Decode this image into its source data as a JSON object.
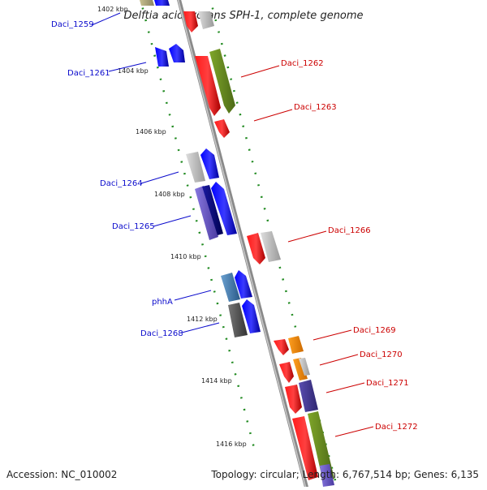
{
  "title": "Delftia acidovorans SPH-1, complete genome",
  "accession_text": "Accession: NC_010002",
  "topology_text": "Topology: circular; Length: 6,767,514 bp; Genes: 6,135",
  "kbp_labels": {
    "k1402": "1402 kbp",
    "k1404": "1404 kbp",
    "k1406": "1406 kbp",
    "k1408": "1408 kbp",
    "k1410": "1410 kbp",
    "k1412": "1412 kbp",
    "k1414": "1414 kbp",
    "k1416": "1416 kbp"
  },
  "genes_left": {
    "daci_1259": "Daci_1259",
    "daci_1261": "Daci_1261",
    "daci_1264": "Daci_1264",
    "daci_1265": "Daci_1265",
    "phhA": "phhA",
    "daci_1268": "Daci_1268"
  },
  "genes_right": {
    "daci_1262": "Daci_1262",
    "daci_1263": "Daci_1263",
    "daci_1266": "Daci_1266",
    "daci_1269": "Daci_1269",
    "daci_1270": "Daci_1270",
    "daci_1271": "Daci_1271",
    "daci_1272": "Daci_1272"
  },
  "colors": {
    "forward_blue": "#0000ff",
    "reverse_red": "#ff0000",
    "olive": "#6b8e23",
    "grey": "#bbbbbb",
    "navy": "#000080",
    "purple": "#6a5acd",
    "steelblue": "#4682b4",
    "darkgrey": "#555555",
    "orange": "#ff8c00",
    "dark_slate": "#483d8b",
    "label_left": "#0a0acc",
    "label_right": "#cc0000",
    "ticks": "#228b22"
  }
}
